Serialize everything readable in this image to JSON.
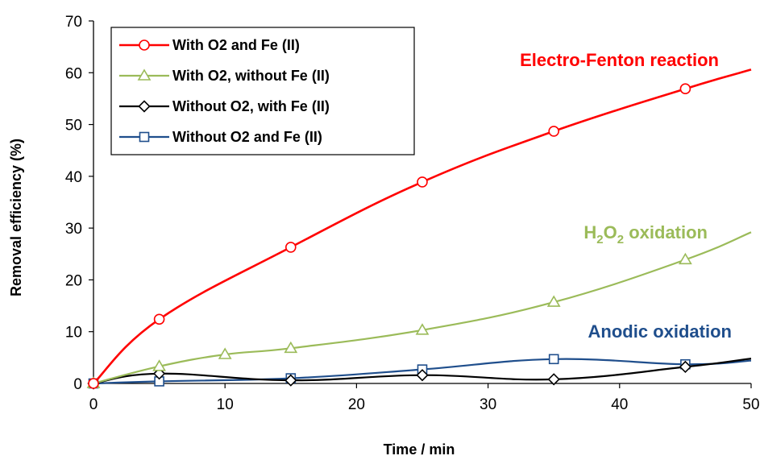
{
  "chart_data": {
    "type": "line",
    "xlabel": "Time / min",
    "ylabel": "Removal efficiency (%)",
    "xlim": [
      0,
      50
    ],
    "ylim": [
      0,
      70
    ],
    "xticks": [
      0,
      10,
      20,
      30,
      40,
      50
    ],
    "yticks": [
      0,
      10,
      20,
      30,
      40,
      50,
      60,
      70
    ],
    "grid": false,
    "legend_position": "top-left",
    "series": [
      {
        "name": "With O2 and Fe (II)",
        "color": "#ff0000",
        "marker": "circle",
        "x": [
          0,
          5,
          15,
          25,
          35,
          45,
          50
        ],
        "y": [
          0,
          12.4,
          26.3,
          38.9,
          48.7,
          56.9,
          60.6
        ],
        "marked": [
          true,
          true,
          true,
          true,
          true,
          true,
          false
        ]
      },
      {
        "name": "With O2, without Fe (II)",
        "color": "#9bbb59",
        "marker": "triangle",
        "x": [
          0,
          5,
          10,
          15,
          25,
          35,
          45,
          50
        ],
        "y": [
          0,
          3.3,
          5.6,
          6.8,
          10.3,
          15.7,
          23.9,
          29.2
        ],
        "marked": [
          true,
          true,
          true,
          true,
          true,
          true,
          true,
          false
        ]
      },
      {
        "name": "Without O2, with Fe (II)",
        "color": "#000000",
        "marker": "diamond",
        "x": [
          0,
          5,
          15,
          25,
          35,
          45,
          50
        ],
        "y": [
          0,
          1.9,
          0.6,
          1.6,
          0.8,
          3.2,
          4.8
        ],
        "marked": [
          true,
          true,
          true,
          true,
          true,
          true,
          false
        ]
      },
      {
        "name": "Without O2 and Fe (II)",
        "color": "#1f4e8c",
        "marker": "square",
        "x": [
          0,
          5,
          15,
          25,
          35,
          45,
          50
        ],
        "y": [
          0,
          0.4,
          1.0,
          2.7,
          4.7,
          3.7,
          4.4
        ],
        "marked": [
          true,
          true,
          true,
          true,
          true,
          true,
          false
        ]
      }
    ],
    "annotations": {
      "fenton": {
        "text": "Electro-Fenton reaction",
        "color": "#ff0000"
      },
      "h2o2": {
        "pre": "H",
        "sub1": "2",
        "mid": "O",
        "sub2": "2",
        "post": " oxidation",
        "color": "#9bbb59"
      },
      "anodic": {
        "text": "Anodic oxidation",
        "color": "#1f4e8c"
      }
    }
  }
}
